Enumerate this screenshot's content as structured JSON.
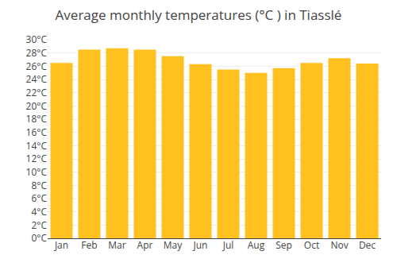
{
  "chart_data": {
    "type": "bar",
    "title": "Average monthly temperatures (°C ) in Tiasslé",
    "categories": [
      "Jan",
      "Feb",
      "Mar",
      "Apr",
      "May",
      "Jun",
      "Jul",
      "Aug",
      "Sep",
      "Oct",
      "Nov",
      "Dec"
    ],
    "values": [
      26.5,
      28.5,
      28.7,
      28.5,
      27.5,
      26.3,
      25.5,
      25.0,
      25.7,
      26.5,
      27.2,
      26.4
    ],
    "color": "#FFC020",
    "ylim": [
      0,
      30
    ],
    "yticks": [
      {
        "value": 0,
        "label": "0°C"
      },
      {
        "value": 2,
        "label": "2°C"
      },
      {
        "value": 4,
        "label": "4°C"
      },
      {
        "value": 6,
        "label": "6°C"
      },
      {
        "value": 8,
        "label": "8°C"
      },
      {
        "value": 10,
        "label": "10°C"
      },
      {
        "value": 12,
        "label": "12°C"
      },
      {
        "value": 14,
        "label": "14°C"
      },
      {
        "value": 16,
        "label": "16°C"
      },
      {
        "value": 18,
        "label": "18°C"
      },
      {
        "value": 20,
        "label": "20°C"
      },
      {
        "value": 22,
        "label": "22°C"
      },
      {
        "value": 24,
        "label": "24°C"
      },
      {
        "value": 26,
        "label": "26°C"
      },
      {
        "value": 28,
        "label": "28°C"
      },
      {
        "value": 30,
        "label": "30°C"
      }
    ],
    "grid": true
  }
}
